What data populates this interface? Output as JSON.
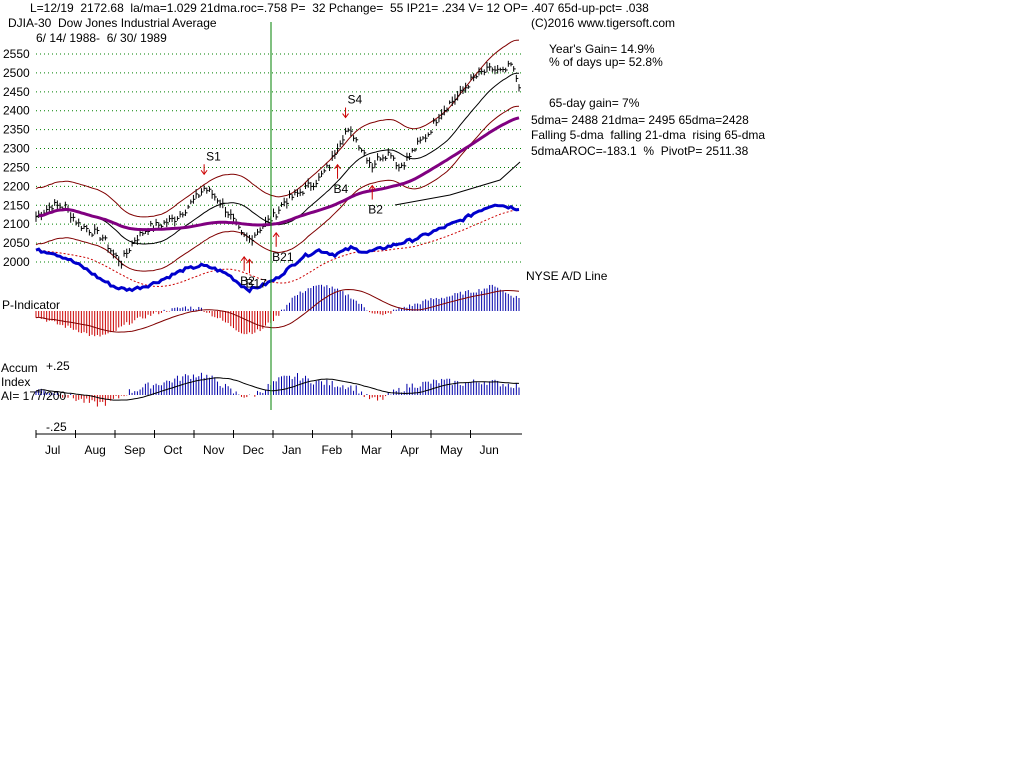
{
  "header": {
    "line1": "L=12/19  2172.68  la/ma=1.029 21dma.roc=.758 P=  32 Pchange=  55 IP21= .234 V= 12 OP= .407 65d-up-pct= .038",
    "title": "DJIA-30  Dow Jones Industrial Average",
    "copyright": "(C)2016 www.tigersoft.com",
    "date_range": "6/ 14/ 1988-  6/ 30/ 1989"
  },
  "stats": {
    "years_gain": "Year's Gain= 14.9%",
    "pct_days_up": "% of days up= 52.8%",
    "gain_65day": "65-day gain= 7%",
    "dma_line": "5dma= 2488 21dma= 2495 65dma=2428",
    "trend_line": "Falling 5-dma  falling 21-dma  rising 65-dma",
    "aroc_line": "5dmaAROC=-183.1  %  PivotP= 2511.38"
  },
  "labels": {
    "ad_line": "NYSE A/D Line",
    "p_indicator": "P-Indicator",
    "accum_line1": "Accum",
    "accum_line2": "Index",
    "ai_line": "AI= 177/200",
    "accum_top": "+.25",
    "accum_bottom": "-.25"
  },
  "colors": {
    "price": "#000000",
    "ma21": "#000000",
    "ma65": "#800080",
    "band": "#800000",
    "ad_line": "#0000cc",
    "ad_ma": "#cc0000",
    "positive_bar": "#0000aa",
    "negative_bar": "#cc0000",
    "marker": "#cc0000",
    "vline": "#008000",
    "grid": "#008000"
  },
  "chart_data": {
    "type": "line",
    "title": "DJIA-30  Dow Jones Industrial Average",
    "xlabel": "",
    "ylabel": "",
    "ylim": [
      2000,
      2550
    ],
    "yticks": [
      "2550",
      "2500",
      "2450",
      "2400",
      "2350",
      "2300",
      "2250",
      "2200",
      "2150",
      "2100",
      "2050",
      "2000"
    ],
    "months": [
      "Jul",
      "Aug",
      "Sep",
      "Oct",
      "Nov",
      "Dec",
      "Jan",
      "Feb",
      "Mar",
      "Apr",
      "May",
      "Jun"
    ],
    "price_key_points": [
      [
        0,
        2120
      ],
      [
        6,
        2150
      ],
      [
        11,
        2145
      ],
      [
        16,
        2100
      ],
      [
        20,
        2085
      ],
      [
        25,
        2065
      ],
      [
        29,
        2020
      ],
      [
        32,
        2000
      ],
      [
        37,
        2060
      ],
      [
        42,
        2090
      ],
      [
        47,
        2100
      ],
      [
        52,
        2115
      ],
      [
        56,
        2140
      ],
      [
        60,
        2170
      ],
      [
        63,
        2195
      ],
      [
        66,
        2180
      ],
      [
        69,
        2160
      ],
      [
        73,
        2120
      ],
      [
        77,
        2070
      ],
      [
        80,
        2060
      ],
      [
        84,
        2090
      ],
      [
        89,
        2120
      ],
      [
        93,
        2160
      ],
      [
        98,
        2180
      ],
      [
        102,
        2200
      ],
      [
        106,
        2220
      ],
      [
        110,
        2255
      ],
      [
        113,
        2310
      ],
      [
        116,
        2345
      ],
      [
        119,
        2335
      ],
      [
        122,
        2300
      ],
      [
        126,
        2255
      ],
      [
        129,
        2280
      ],
      [
        133,
        2290
      ],
      [
        136,
        2250
      ],
      [
        140,
        2280
      ],
      [
        143,
        2310
      ],
      [
        147,
        2340
      ],
      [
        151,
        2390
      ],
      [
        155,
        2420
      ],
      [
        159,
        2445
      ],
      [
        163,
        2480
      ],
      [
        167,
        2500
      ],
      [
        171,
        2510
      ],
      [
        175,
        2500
      ],
      [
        178,
        2520
      ],
      [
        181,
        2470
      ]
    ],
    "ad_line_points": [
      [
        0,
        38
      ],
      [
        6,
        36
      ],
      [
        12,
        30
      ],
      [
        18,
        22
      ],
      [
        24,
        12
      ],
      [
        30,
        4
      ],
      [
        35,
        2
      ],
      [
        42,
        6
      ],
      [
        48,
        12
      ],
      [
        55,
        20
      ],
      [
        62,
        24
      ],
      [
        66,
        22
      ],
      [
        72,
        16
      ],
      [
        77,
        6
      ],
      [
        80,
        2
      ],
      [
        85,
        6
      ],
      [
        90,
        12
      ],
      [
        95,
        22
      ],
      [
        100,
        32
      ],
      [
        106,
        38
      ],
      [
        112,
        34
      ],
      [
        118,
        40
      ],
      [
        124,
        36
      ],
      [
        130,
        40
      ],
      [
        136,
        44
      ],
      [
        142,
        48
      ],
      [
        148,
        54
      ],
      [
        154,
        60
      ],
      [
        160,
        66
      ],
      [
        166,
        74
      ],
      [
        172,
        80
      ],
      [
        176,
        78
      ],
      [
        180,
        76
      ]
    ],
    "p_indicator_points": [
      [
        0,
        -8
      ],
      [
        8,
        -20
      ],
      [
        16,
        -30
      ],
      [
        22,
        -40
      ],
      [
        28,
        -35
      ],
      [
        34,
        -20
      ],
      [
        40,
        -10
      ],
      [
        48,
        0
      ],
      [
        56,
        6
      ],
      [
        62,
        4
      ],
      [
        66,
        -6
      ],
      [
        72,
        -20
      ],
      [
        78,
        -35
      ],
      [
        84,
        -30
      ],
      [
        90,
        -10
      ],
      [
        96,
        20
      ],
      [
        102,
        35
      ],
      [
        108,
        40
      ],
      [
        114,
        30
      ],
      [
        118,
        22
      ],
      [
        124,
        2
      ],
      [
        130,
        -8
      ],
      [
        136,
        4
      ],
      [
        142,
        10
      ],
      [
        148,
        18
      ],
      [
        154,
        22
      ],
      [
        160,
        28
      ],
      [
        166,
        32
      ],
      [
        172,
        40
      ],
      [
        176,
        28
      ],
      [
        181,
        20
      ]
    ],
    "accum_points": [
      [
        0,
        0.05
      ],
      [
        8,
        0.02
      ],
      [
        16,
        -0.04
      ],
      [
        22,
        -0.08
      ],
      [
        28,
        -0.06
      ],
      [
        34,
        0.02
      ],
      [
        42,
        0.08
      ],
      [
        50,
        0.12
      ],
      [
        56,
        0.16
      ],
      [
        62,
        0.18
      ],
      [
        68,
        0.12
      ],
      [
        74,
        0.02
      ],
      [
        80,
        -0.02
      ],
      [
        86,
        0.06
      ],
      [
        92,
        0.14
      ],
      [
        98,
        0.16
      ],
      [
        104,
        0.12
      ],
      [
        110,
        0.1
      ],
      [
        116,
        0.08
      ],
      [
        120,
        0.06
      ],
      [
        124,
        -0.02
      ],
      [
        128,
        -0.05
      ],
      [
        134,
        0.02
      ],
      [
        140,
        0.08
      ],
      [
        146,
        0.1
      ],
      [
        152,
        0.12
      ],
      [
        160,
        0.1
      ],
      [
        168,
        0.12
      ],
      [
        174,
        0.1
      ],
      [
        181,
        0.08
      ]
    ],
    "signals": [
      {
        "label": "S1",
        "day": 63,
        "dir": "down"
      },
      {
        "label": "S4",
        "day": 116,
        "dir": "down"
      },
      {
        "label": "B4",
        "day": 113,
        "dir": "up"
      },
      {
        "label": "B2",
        "day": 126,
        "dir": "up"
      },
      {
        "label": "B2",
        "day": 78,
        "dir": "up"
      },
      {
        "label": "B17",
        "day": 80,
        "dir": "up"
      },
      {
        "label": "B21",
        "day": 90,
        "dir": "up"
      }
    ]
  }
}
